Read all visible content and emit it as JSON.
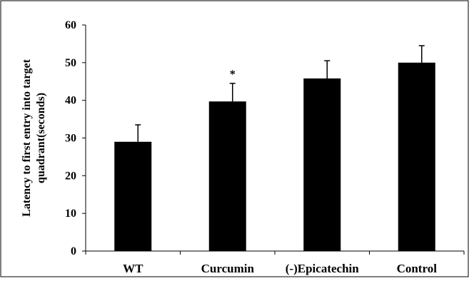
{
  "chart_data": {
    "type": "bar",
    "title": "",
    "xlabel": "",
    "ylabel_lines": [
      "Latency to first entry into target",
      "quadrant(seconds)"
    ],
    "categories": [
      "WT",
      "Curcumin",
      "(-)Epicatechin",
      "Control"
    ],
    "values": [
      29,
      39.7,
      45.8,
      50
    ],
    "error_upper": [
      33.5,
      44.5,
      50.5,
      54.5
    ],
    "annotations": [
      "",
      "*",
      "",
      ""
    ],
    "ylim": [
      0,
      60
    ],
    "yticks": [
      0,
      10,
      20,
      30,
      40,
      50,
      60
    ],
    "grid": false,
    "legend": "none",
    "bar_color": "#000000",
    "frame_color": "#000000"
  }
}
